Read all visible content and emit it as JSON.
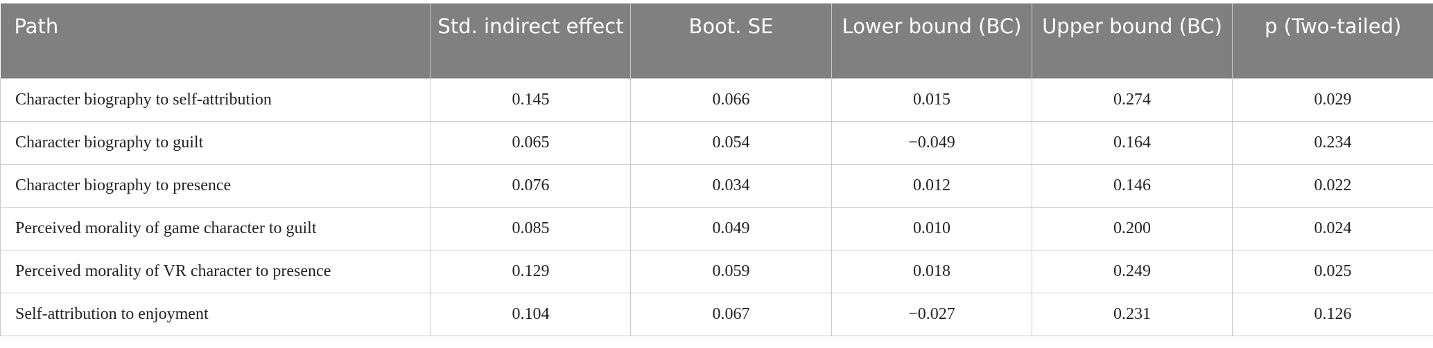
{
  "table": {
    "header": [
      "Path",
      "Std. indirect effect",
      "Boot. SE",
      "Lower bound (BC)",
      "Upper bound (BC)",
      "p (Two-tailed)"
    ],
    "rows": [
      [
        "Character biography to self-attribution",
        "0.145",
        "0.066",
        "0.015",
        "0.274",
        "0.029"
      ],
      [
        "Character biography to guilt",
        "0.065",
        "0.054",
        "−0.049",
        "0.164",
        "0.234"
      ],
      [
        "Character biography to presence",
        "0.076",
        "0.034",
        "0.012",
        "0.146",
        "0.022"
      ],
      [
        "Perceived morality of game character to guilt",
        "0.085",
        "0.049",
        "0.010",
        "0.200",
        "0.024"
      ],
      [
        "Perceived morality of VR character to presence",
        "0.129",
        "0.059",
        "0.018",
        "0.249",
        "0.025"
      ],
      [
        "Self-attribution to enjoyment",
        "0.104",
        "0.067",
        "−0.027",
        "0.231",
        "0.126"
      ]
    ]
  }
}
